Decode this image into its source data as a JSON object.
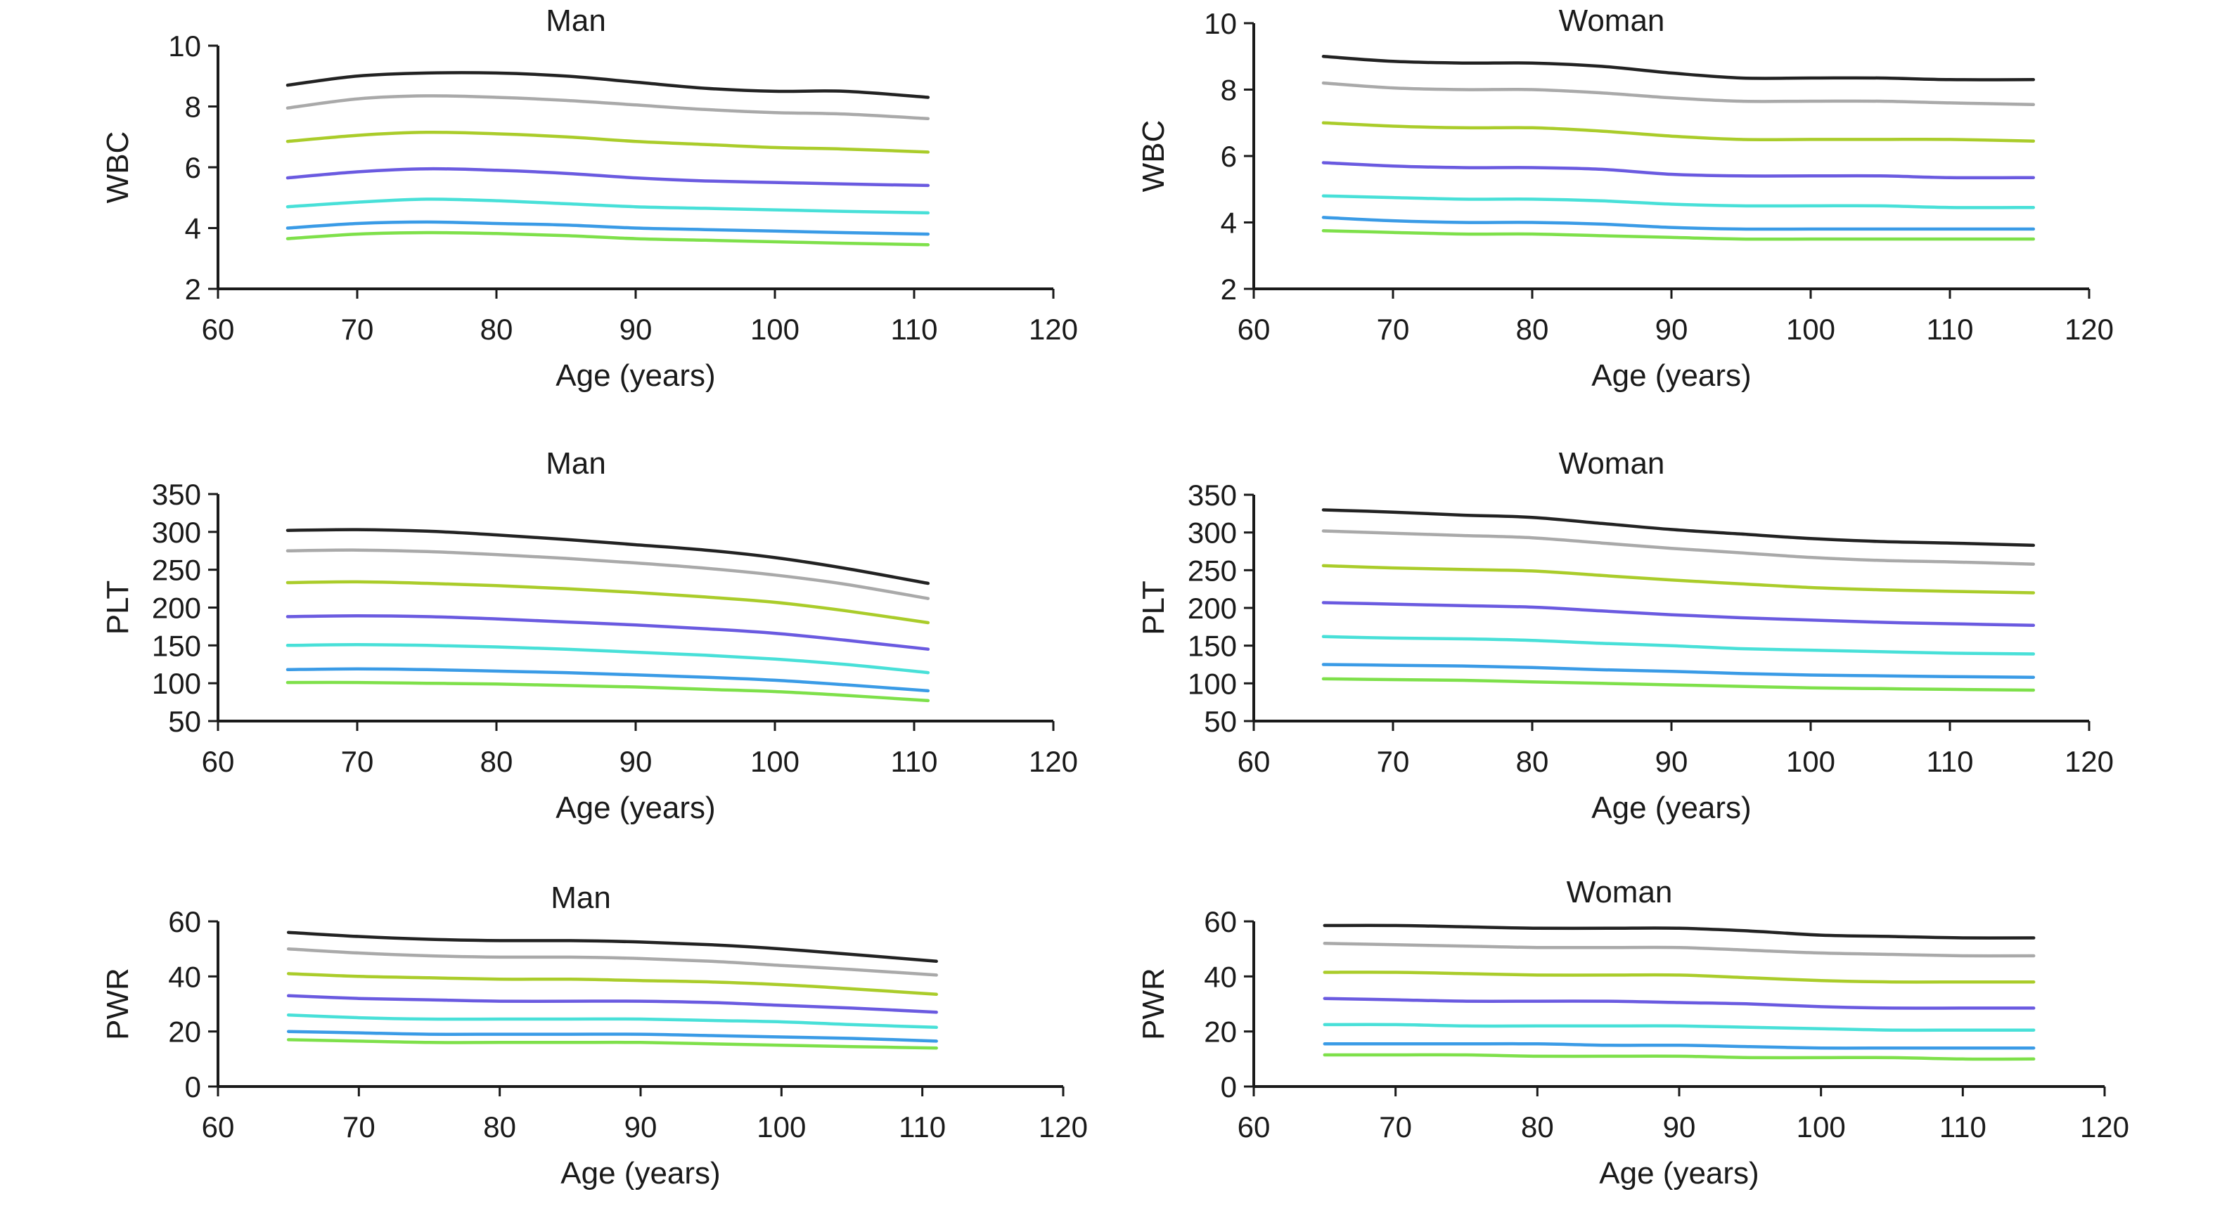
{
  "chart_data": [
    {
      "type": "line",
      "title": "Man",
      "xlabel": "Age (years)",
      "ylabel": "WBC",
      "xlim": [
        60,
        120
      ],
      "ylim": [
        2,
        10
      ],
      "xticks": [
        60,
        70,
        80,
        90,
        100,
        110,
        120
      ],
      "yticks": [
        2,
        4,
        6,
        8,
        10
      ],
      "grid": false,
      "x": [
        65,
        70,
        75,
        80,
        85,
        90,
        95,
        100,
        105,
        111
      ],
      "series": [
        {
          "color": "#222222",
          "values": [
            8.7,
            9.0,
            9.1,
            9.1,
            9.0,
            8.8,
            8.6,
            8.5,
            8.5,
            8.3
          ]
        },
        {
          "color": "#a9a9a9",
          "values": [
            7.95,
            8.25,
            8.35,
            8.3,
            8.2,
            8.05,
            7.9,
            7.8,
            7.75,
            7.6
          ]
        },
        {
          "color": "#aacc2a",
          "values": [
            6.85,
            7.05,
            7.15,
            7.1,
            7.0,
            6.85,
            6.75,
            6.65,
            6.6,
            6.5
          ]
        },
        {
          "color": "#6a5ae0",
          "values": [
            5.65,
            5.85,
            5.95,
            5.9,
            5.8,
            5.65,
            5.55,
            5.5,
            5.45,
            5.4
          ]
        },
        {
          "color": "#48e0d8",
          "values": [
            4.7,
            4.85,
            4.95,
            4.9,
            4.8,
            4.7,
            4.65,
            4.6,
            4.55,
            4.5
          ]
        },
        {
          "color": "#3a9be6",
          "values": [
            4.0,
            4.15,
            4.2,
            4.15,
            4.1,
            4.0,
            3.95,
            3.9,
            3.85,
            3.8
          ]
        },
        {
          "color": "#7ee04a",
          "values": [
            3.65,
            3.8,
            3.85,
            3.82,
            3.75,
            3.65,
            3.6,
            3.55,
            3.5,
            3.45
          ]
        }
      ]
    },
    {
      "type": "line",
      "title": "Woman",
      "xlabel": "Age (years)",
      "ylabel": "WBC",
      "xlim": [
        60,
        120
      ],
      "ylim": [
        2,
        10
      ],
      "xticks": [
        60,
        70,
        80,
        90,
        100,
        110,
        120
      ],
      "yticks": [
        2,
        4,
        6,
        8,
        10
      ],
      "grid": false,
      "x": [
        65,
        70,
        75,
        80,
        85,
        90,
        95,
        100,
        105,
        110,
        116
      ],
      "series": [
        {
          "color": "#222222",
          "values": [
            9.0,
            8.85,
            8.8,
            8.8,
            8.7,
            8.5,
            8.35,
            8.35,
            8.35,
            8.3,
            8.3
          ]
        },
        {
          "color": "#a9a9a9",
          "values": [
            8.2,
            8.05,
            8.0,
            8.0,
            7.9,
            7.75,
            7.65,
            7.65,
            7.65,
            7.6,
            7.55
          ]
        },
        {
          "color": "#aacc2a",
          "values": [
            7.0,
            6.9,
            6.85,
            6.85,
            6.75,
            6.6,
            6.5,
            6.5,
            6.5,
            6.5,
            6.45
          ]
        },
        {
          "color": "#6a5ae0",
          "values": [
            5.8,
            5.7,
            5.65,
            5.65,
            5.6,
            5.45,
            5.4,
            5.4,
            5.4,
            5.35,
            5.35
          ]
        },
        {
          "color": "#48e0d8",
          "values": [
            4.8,
            4.75,
            4.7,
            4.7,
            4.65,
            4.55,
            4.5,
            4.5,
            4.5,
            4.45,
            4.45
          ]
        },
        {
          "color": "#3a9be6",
          "values": [
            4.15,
            4.05,
            4.0,
            4.0,
            3.95,
            3.85,
            3.8,
            3.8,
            3.8,
            3.8,
            3.8
          ]
        },
        {
          "color": "#7ee04a",
          "values": [
            3.75,
            3.7,
            3.65,
            3.65,
            3.6,
            3.55,
            3.5,
            3.5,
            3.5,
            3.5,
            3.5
          ]
        }
      ]
    },
    {
      "type": "line",
      "title": "Man",
      "xlabel": "Age (years)",
      "ylabel": "PLT",
      "xlim": [
        60,
        120
      ],
      "ylim": [
        50,
        350
      ],
      "xticks": [
        60,
        70,
        80,
        90,
        100,
        110,
        120
      ],
      "yticks": [
        50,
        100,
        150,
        200,
        250,
        300,
        350
      ],
      "grid": false,
      "x": [
        65,
        70,
        75,
        80,
        85,
        90,
        95,
        100,
        105,
        111
      ],
      "series": [
        {
          "color": "#222222",
          "values": [
            302,
            303,
            301,
            296,
            290,
            283,
            276,
            266,
            252,
            232
          ]
        },
        {
          "color": "#a9a9a9",
          "values": [
            275,
            276,
            274,
            270,
            265,
            259,
            252,
            243,
            231,
            212
          ]
        },
        {
          "color": "#aacc2a",
          "values": [
            233,
            234,
            232,
            229,
            225,
            220,
            214,
            207,
            196,
            180
          ]
        },
        {
          "color": "#6a5ae0",
          "values": [
            188,
            189,
            188,
            185,
            181,
            177,
            172,
            166,
            157,
            145
          ]
        },
        {
          "color": "#48e0d8",
          "values": [
            150,
            151,
            150,
            148,
            145,
            141,
            137,
            132,
            125,
            114
          ]
        },
        {
          "color": "#3a9be6",
          "values": [
            118,
            119,
            118,
            116,
            114,
            111,
            108,
            104,
            98,
            90
          ]
        },
        {
          "color": "#7ee04a",
          "values": [
            101,
            101,
            100,
            99,
            97,
            95,
            92,
            89,
            84,
            77
          ]
        }
      ]
    },
    {
      "type": "line",
      "title": "Woman",
      "xlabel": "Age (years)",
      "ylabel": "PLT",
      "xlim": [
        60,
        120
      ],
      "ylim": [
        50,
        350
      ],
      "xticks": [
        60,
        70,
        80,
        90,
        100,
        110,
        120
      ],
      "yticks": [
        50,
        100,
        150,
        200,
        250,
        300,
        350
      ],
      "grid": false,
      "x": [
        65,
        70,
        75,
        80,
        85,
        90,
        95,
        100,
        105,
        110,
        116
      ],
      "series": [
        {
          "color": "#222222",
          "values": [
            330,
            327,
            323,
            320,
            312,
            304,
            298,
            292,
            288,
            286,
            283
          ]
        },
        {
          "color": "#a9a9a9",
          "values": [
            302,
            299,
            296,
            293,
            286,
            279,
            273,
            267,
            263,
            261,
            258
          ]
        },
        {
          "color": "#aacc2a",
          "values": [
            256,
            253,
            251,
            249,
            243,
            237,
            232,
            227,
            224,
            222,
            220
          ]
        },
        {
          "color": "#6a5ae0",
          "values": [
            207,
            205,
            203,
            201,
            196,
            191,
            187,
            184,
            181,
            179,
            177
          ]
        },
        {
          "color": "#48e0d8",
          "values": [
            162,
            160,
            159,
            157,
            153,
            150,
            146,
            144,
            142,
            140,
            139
          ]
        },
        {
          "color": "#3a9be6",
          "values": [
            125,
            124,
            123,
            121,
            118,
            116,
            113,
            111,
            110,
            109,
            108
          ]
        },
        {
          "color": "#7ee04a",
          "values": [
            106,
            105,
            104,
            102,
            100,
            98,
            96,
            94,
            93,
            92,
            91
          ]
        }
      ]
    },
    {
      "type": "line",
      "title": "Man",
      "xlabel": "Age (years)",
      "ylabel": "PWR",
      "xlim": [
        60,
        120
      ],
      "ylim": [
        0,
        60
      ],
      "xticks": [
        60,
        70,
        80,
        90,
        100,
        110,
        120
      ],
      "yticks": [
        0,
        20,
        40,
        60
      ],
      "grid": false,
      "x": [
        65,
        70,
        75,
        80,
        85,
        90,
        95,
        100,
        105,
        111
      ],
      "series": [
        {
          "color": "#222222",
          "values": [
            56,
            54.5,
            53.5,
            53,
            53,
            52.5,
            51.5,
            50,
            48,
            45.5
          ]
        },
        {
          "color": "#a9a9a9",
          "values": [
            50,
            48.5,
            47.5,
            47,
            47,
            46.5,
            45.5,
            44,
            42.5,
            40.5
          ]
        },
        {
          "color": "#aacc2a",
          "values": [
            41,
            40,
            39.5,
            39,
            39,
            38.5,
            38,
            37,
            35.5,
            33.5
          ]
        },
        {
          "color": "#6a5ae0",
          "values": [
            33,
            32,
            31.5,
            31,
            31,
            31,
            30.5,
            29.5,
            28.5,
            27
          ]
        },
        {
          "color": "#48e0d8",
          "values": [
            26,
            25,
            24.5,
            24.5,
            24.5,
            24.5,
            24,
            23.5,
            22.5,
            21.5
          ]
        },
        {
          "color": "#3a9be6",
          "values": [
            20,
            19.5,
            19,
            19,
            19,
            19,
            18.5,
            18,
            17.5,
            16.5
          ]
        },
        {
          "color": "#7ee04a",
          "values": [
            17,
            16.5,
            16,
            16,
            16,
            16,
            15.5,
            15,
            14.5,
            14
          ]
        }
      ]
    },
    {
      "type": "line",
      "title": "Woman",
      "xlabel": "Age (years)",
      "ylabel": "PWR",
      "xlim": [
        60,
        120
      ],
      "ylim": [
        0,
        60
      ],
      "xticks": [
        60,
        70,
        80,
        90,
        100,
        110,
        120
      ],
      "yticks": [
        0,
        20,
        40,
        60
      ],
      "grid": false,
      "x": [
        65,
        70,
        75,
        80,
        85,
        90,
        95,
        100,
        105,
        110,
        115
      ],
      "series": [
        {
          "color": "#222222",
          "values": [
            58.5,
            58.5,
            58,
            57.5,
            57.5,
            57.5,
            56.5,
            55,
            54.5,
            54,
            54
          ]
        },
        {
          "color": "#a9a9a9",
          "values": [
            52,
            51.5,
            51,
            50.5,
            50.5,
            50.5,
            49.5,
            48.5,
            48,
            47.5,
            47.5
          ]
        },
        {
          "color": "#aacc2a",
          "values": [
            41.5,
            41.5,
            41,
            40.5,
            40.5,
            40.5,
            39.5,
            38.5,
            38,
            38,
            38
          ]
        },
        {
          "color": "#6a5ae0",
          "values": [
            32,
            31.5,
            31,
            31,
            31,
            30.5,
            30,
            29,
            28.5,
            28.5,
            28.5
          ]
        },
        {
          "color": "#48e0d8",
          "values": [
            22.5,
            22.5,
            22,
            22,
            22,
            22,
            21.5,
            21,
            20.5,
            20.5,
            20.5
          ]
        },
        {
          "color": "#3a9be6",
          "values": [
            15.5,
            15.5,
            15.5,
            15.5,
            15,
            15,
            14.5,
            14,
            14,
            14,
            14
          ]
        },
        {
          "color": "#7ee04a",
          "values": [
            11.5,
            11.5,
            11.5,
            11,
            11,
            11,
            10.5,
            10.5,
            10.5,
            10,
            10
          ]
        }
      ]
    }
  ]
}
